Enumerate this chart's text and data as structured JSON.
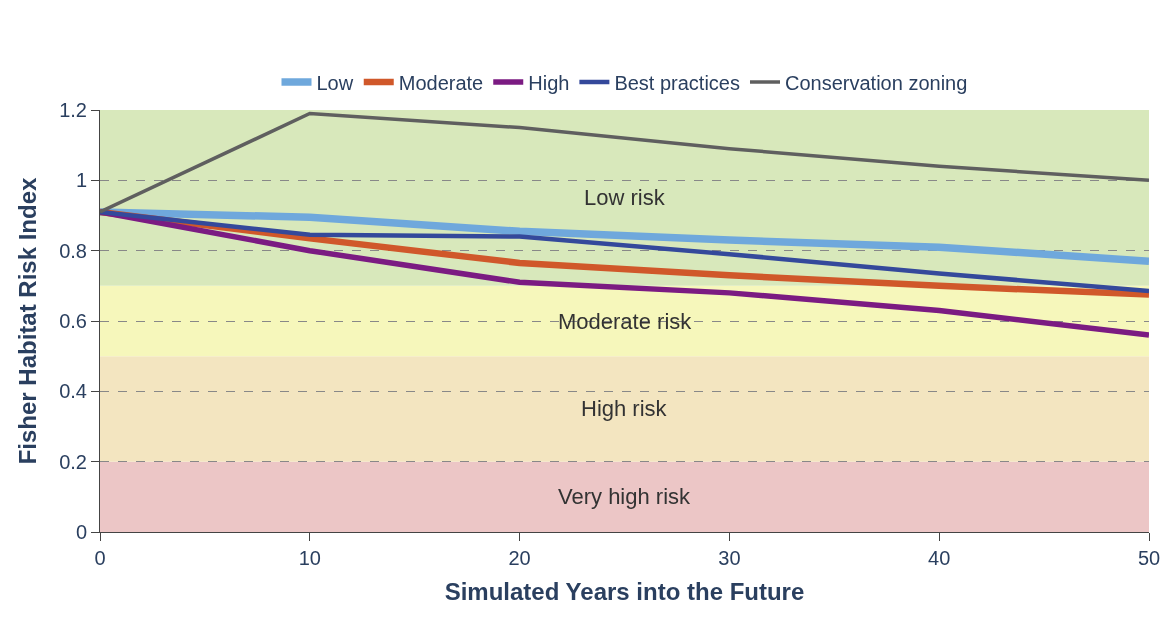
{
  "chart_data": {
    "type": "line",
    "xlabel": "Simulated Years into the Future",
    "ylabel": "Fisher Habitat Risk Index",
    "x": [
      0,
      10,
      20,
      30,
      40,
      50
    ],
    "series": [
      {
        "name": "Low",
        "color": "#6fa8dc",
        "values": [
          0.91,
          0.895,
          0.855,
          0.83,
          0.81,
          0.77
        ]
      },
      {
        "name": "Moderate",
        "color": "#d0582a",
        "values": [
          0.91,
          0.835,
          0.765,
          0.73,
          0.7,
          0.675
        ]
      },
      {
        "name": "High",
        "color": "#7b1b82",
        "values": [
          0.91,
          0.8,
          0.71,
          0.68,
          0.63,
          0.56
        ]
      },
      {
        "name": "Best practices",
        "color": "#34499b",
        "values": [
          0.91,
          0.845,
          0.84,
          0.79,
          0.735,
          0.685
        ]
      },
      {
        "name": "Conservation zoning",
        "color": "#5f5f5f",
        "values": [
          0.91,
          1.19,
          1.15,
          1.09,
          1.04,
          1.0
        ]
      }
    ],
    "bands": [
      {
        "axis": "y",
        "from": 0,
        "to": 0.2,
        "label": "Very high risk",
        "color": "#ecc6c6"
      },
      {
        "axis": "y",
        "from": 0.2,
        "to": 0.5,
        "label": "High risk",
        "color": "#f3e5c0"
      },
      {
        "axis": "y",
        "from": 0.5,
        "to": 0.7,
        "label": "Moderate risk",
        "color": "#f6f7bb"
      },
      {
        "axis": "y",
        "from": 0.7,
        "to": 1.2,
        "label": "Low risk",
        "color": "#d8e8bb"
      }
    ],
    "xlim": [
      0,
      50
    ],
    "xticks": [
      0,
      10,
      20,
      30,
      40,
      50
    ],
    "ylim": [
      0,
      1.2
    ],
    "yticks": [
      0,
      0.2,
      0.4,
      0.6,
      0.8,
      1,
      1.2
    ],
    "grid": "y",
    "legend": "top",
    "marker": "none",
    "line_style": "solid"
  }
}
